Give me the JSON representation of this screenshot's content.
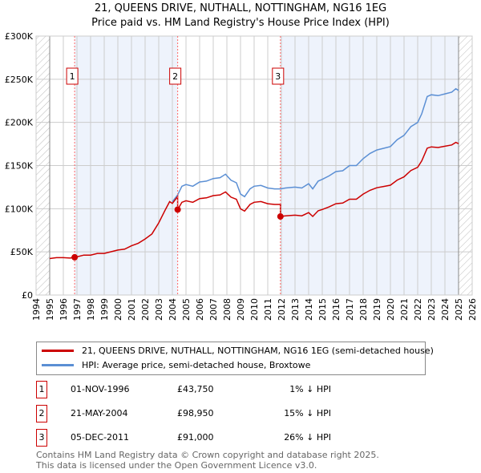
{
  "chart_data": {
    "type": "line",
    "title": "21, QUEENS DRIVE, NUTHALL, NOTTINGHAM, NG16 1EG",
    "subtitle": "Price paid vs. HM Land Registry's House Price Index (HPI)",
    "xlim": [
      1994,
      2026
    ],
    "ylim": [
      0,
      300000
    ],
    "yticks": [
      {
        "v": 0,
        "label": "£0"
      },
      {
        "v": 50000,
        "label": "£50K"
      },
      {
        "v": 100000,
        "label": "£100K"
      },
      {
        "v": 150000,
        "label": "£150K"
      },
      {
        "v": 200000,
        "label": "£200K"
      },
      {
        "v": 250000,
        "label": "£250K"
      },
      {
        "v": 300000,
        "label": "£300K"
      }
    ],
    "xticks": [
      "1994",
      "1995",
      "1996",
      "1997",
      "1998",
      "1999",
      "2000",
      "2001",
      "2002",
      "2003",
      "2004",
      "2005",
      "2006",
      "2007",
      "2008",
      "2009",
      "2010",
      "2011",
      "2012",
      "2013",
      "2014",
      "2015",
      "2016",
      "2017",
      "2018",
      "2019",
      "2020",
      "2021",
      "2022",
      "2023",
      "2024",
      "2025",
      "2026"
    ],
    "grid": true,
    "colors": {
      "property": "#cc0000",
      "hpi": "#5b8fd4",
      "band": "#eef3fc"
    },
    "hatched_ranges": [
      [
        1994,
        1995
      ],
      [
        2025,
        2026
      ]
    ],
    "hpi_series": {
      "name": "HPI: Average price, semi-detached house, Broxtowe",
      "points": [
        [
          1995,
          43
        ],
        [
          1995.5,
          44
        ],
        [
          1996,
          44
        ],
        [
          1996.5,
          43.5
        ],
        [
          1997,
          45
        ],
        [
          1997.5,
          47
        ],
        [
          1998,
          47
        ],
        [
          1998.5,
          49
        ],
        [
          1999,
          49
        ],
        [
          1999.5,
          51
        ],
        [
          2000,
          53
        ],
        [
          2000.5,
          54
        ],
        [
          2001,
          58
        ],
        [
          2001.5,
          61
        ],
        [
          2002,
          66
        ],
        [
          2002.5,
          72
        ],
        [
          2003,
          85
        ],
        [
          2003.5,
          101
        ],
        [
          2003.8,
          110
        ],
        [
          2004,
          108
        ],
        [
          2004.39,
          116
        ],
        [
          2004.7,
          126
        ],
        [
          2005,
          128
        ],
        [
          2005.5,
          126
        ],
        [
          2006,
          131
        ],
        [
          2006.5,
          132
        ],
        [
          2007,
          135
        ],
        [
          2007.5,
          136
        ],
        [
          2007.9,
          140
        ],
        [
          2008.3,
          133
        ],
        [
          2008.7,
          130
        ],
        [
          2009,
          117
        ],
        [
          2009.3,
          114
        ],
        [
          2009.7,
          123
        ],
        [
          2010,
          126
        ],
        [
          2010.5,
          127
        ],
        [
          2011,
          124
        ],
        [
          2011.5,
          123
        ],
        [
          2011.93,
          123
        ],
        [
          2012.3,
          124
        ],
        [
          2013,
          125
        ],
        [
          2013.5,
          124
        ],
        [
          2014,
          129
        ],
        [
          2014.3,
          123
        ],
        [
          2014.7,
          132
        ],
        [
          2015,
          134
        ],
        [
          2015.5,
          138
        ],
        [
          2016,
          143
        ],
        [
          2016.5,
          144
        ],
        [
          2017,
          150
        ],
        [
          2017.5,
          150
        ],
        [
          2018,
          158
        ],
        [
          2018.5,
          164
        ],
        [
          2019,
          168
        ],
        [
          2019.5,
          170
        ],
        [
          2020,
          172
        ],
        [
          2020.5,
          180
        ],
        [
          2021,
          185
        ],
        [
          2021.5,
          195
        ],
        [
          2022,
          200
        ],
        [
          2022.3,
          210
        ],
        [
          2022.7,
          230
        ],
        [
          2023,
          232
        ],
        [
          2023.5,
          231
        ],
        [
          2024,
          233
        ],
        [
          2024.5,
          235
        ],
        [
          2024.8,
          239
        ],
        [
          2025,
          237
        ]
      ]
    },
    "property_series_name": "21, QUEENS DRIVE, NUTHALL, NOTTINGHAM, NG16 1EG (semi-detached house)",
    "sales": [
      {
        "id": "1",
        "x": 1996.83,
        "date": "01-NOV-1996",
        "price": 43750,
        "price_label": "£43,750",
        "hpi_diff": "1% ↓ HPI"
      },
      {
        "id": "2",
        "x": 2004.39,
        "date": "21-MAY-2004",
        "price": 98950,
        "price_label": "£98,950",
        "hpi_diff": "15% ↓ HPI"
      },
      {
        "id": "3",
        "x": 2011.93,
        "date": "05-DEC-2011",
        "price": 91000,
        "price_label": "£91,000",
        "hpi_diff": "26% ↓ HPI"
      }
    ]
  },
  "footer": {
    "line1": "Contains HM Land Registry data © Crown copyright and database right 2025.",
    "line2": "This data is licensed under the Open Government Licence v3.0."
  }
}
